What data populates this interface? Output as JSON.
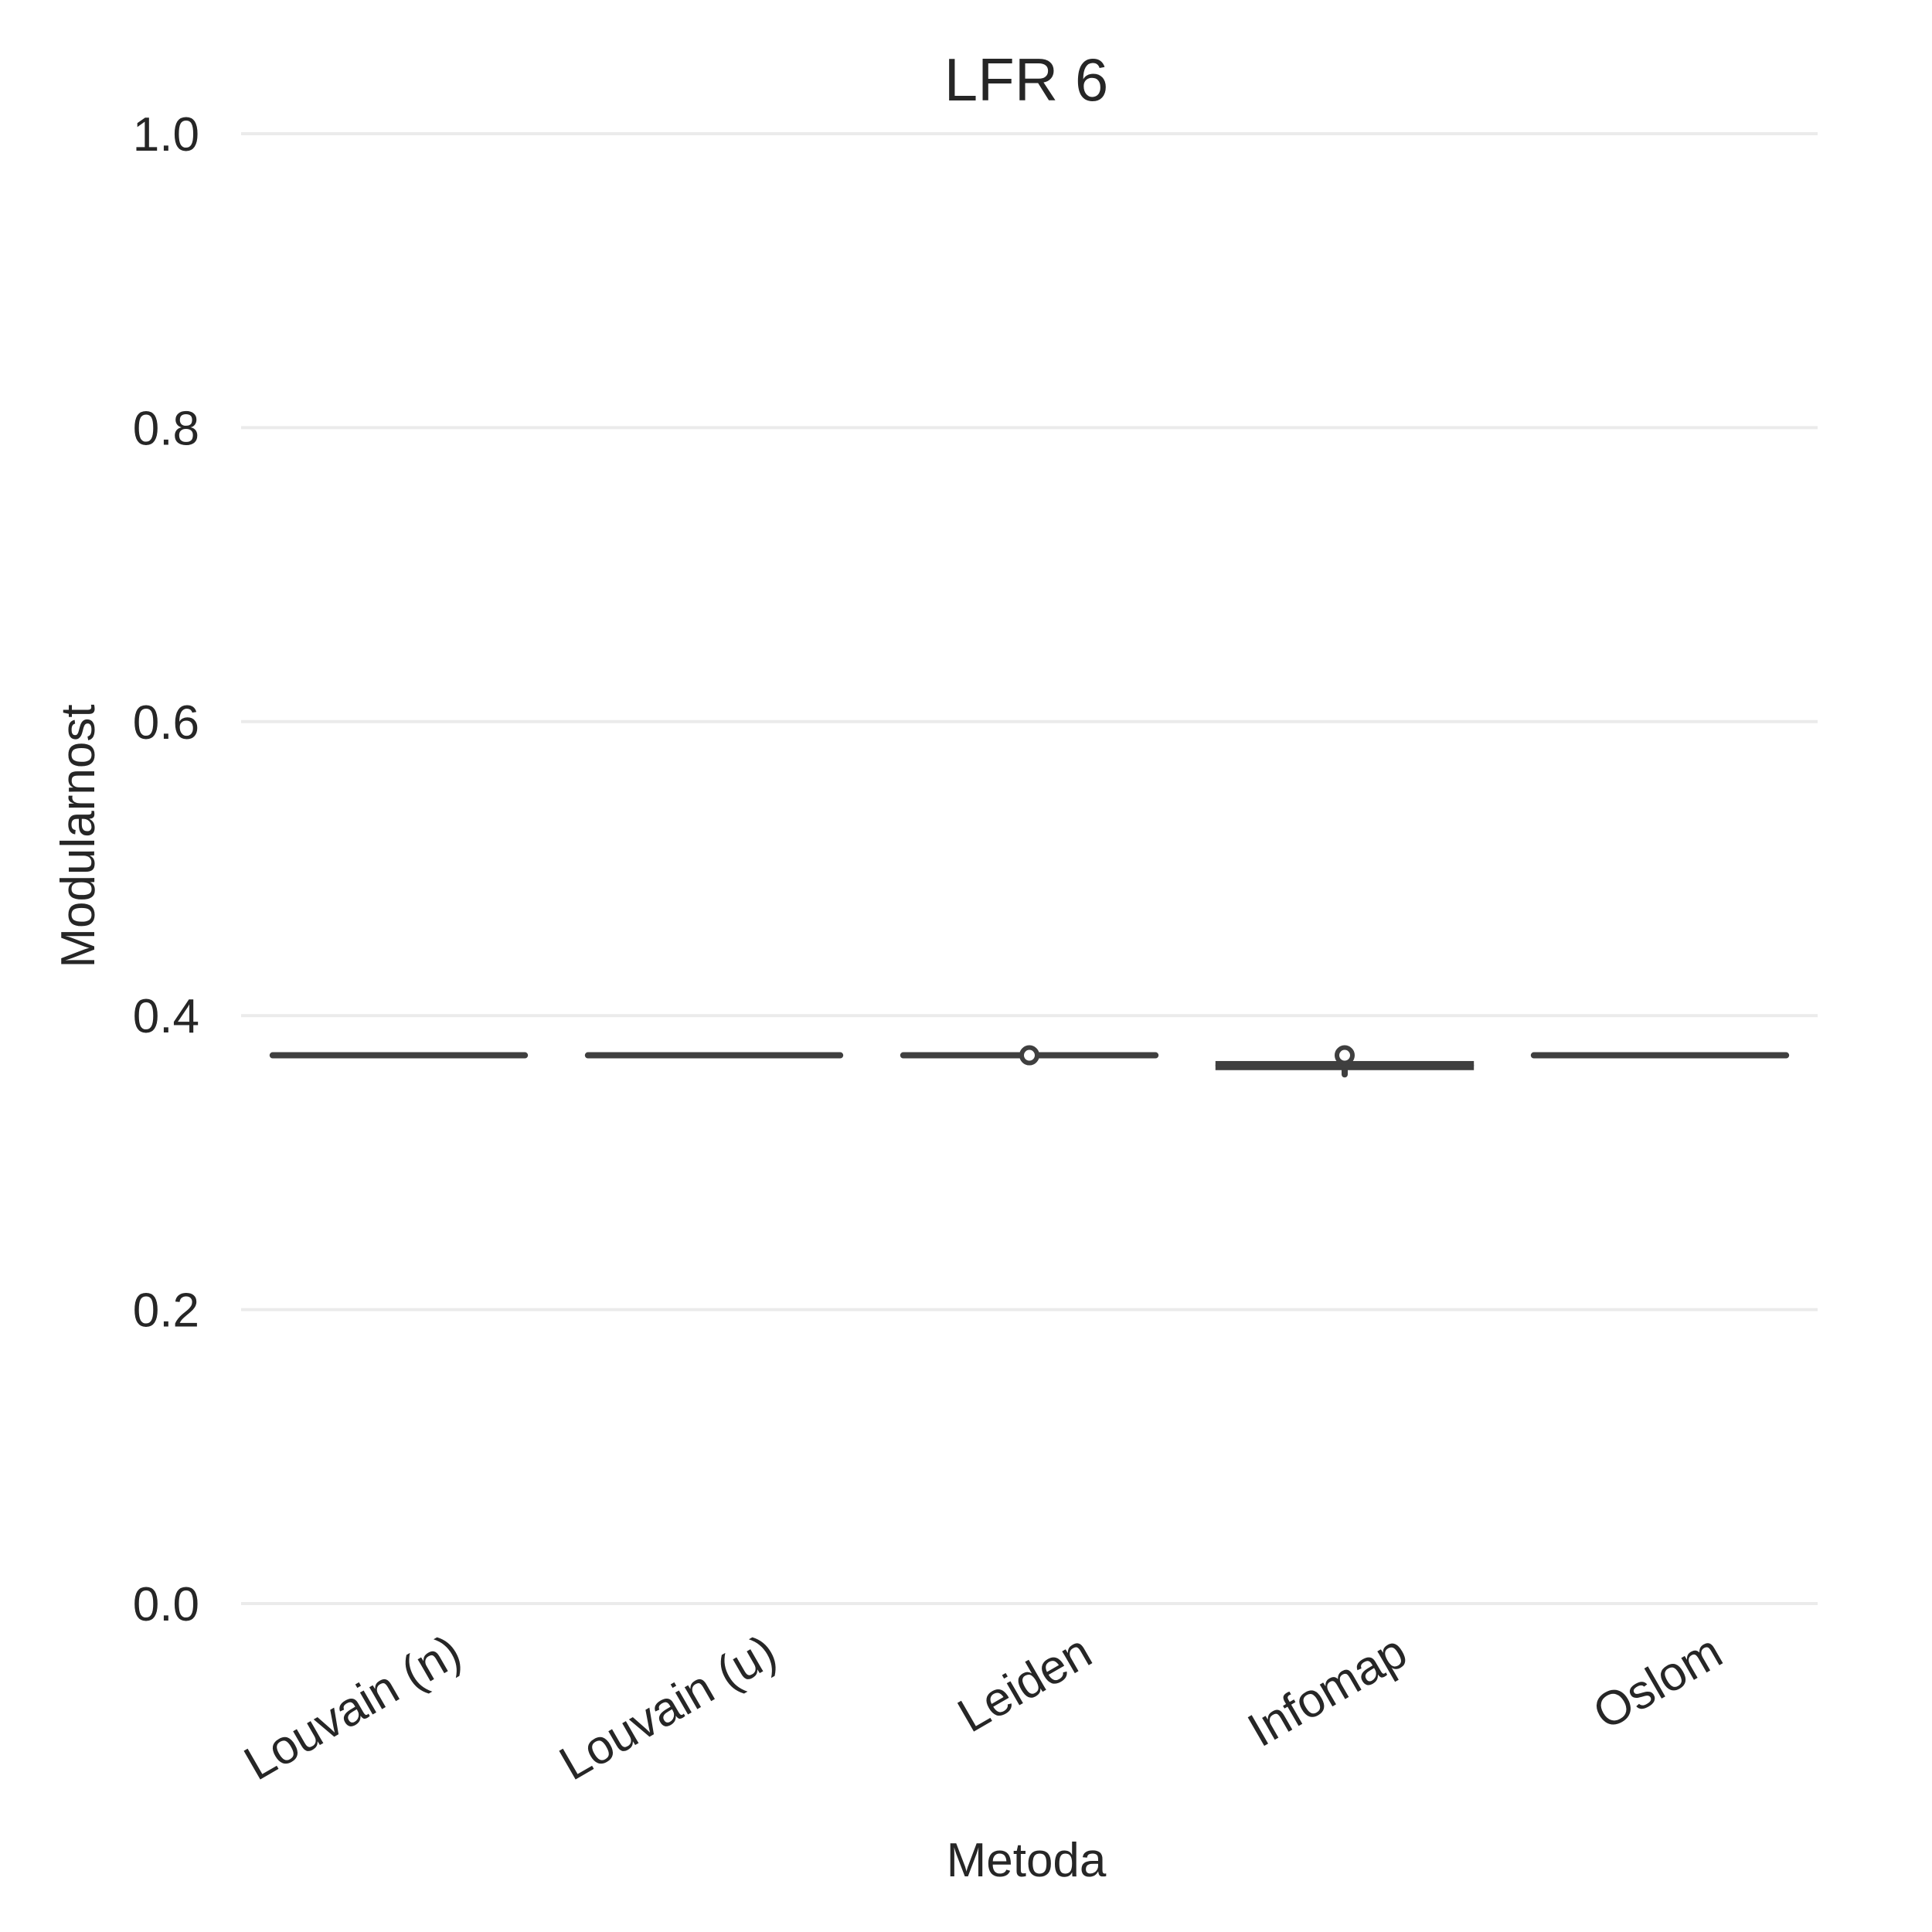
{
  "chart_data": {
    "type": "box",
    "title": "LFR 6",
    "xlabel": "Metoda",
    "ylabel": "Modularnost",
    "ylim": [
      0.0,
      1.0
    ],
    "yticks": [
      "0.0",
      "0.2",
      "0.4",
      "0.6",
      "0.8",
      "1.0"
    ],
    "grid": true,
    "colors": {
      "box": "#3f3f3f",
      "grid": "#ebebeb",
      "text": "#262626"
    },
    "categories": [
      "Louvain (n)",
      "Louvain (u)",
      "Leiden",
      "Infomap",
      "Oslom"
    ],
    "boxes": [
      {
        "category": "Louvain (n)",
        "q1": 0.373,
        "median": 0.373,
        "q3": 0.373,
        "whisker_low": 0.373,
        "whisker_high": 0.373,
        "fliers": []
      },
      {
        "category": "Louvain (u)",
        "q1": 0.373,
        "median": 0.373,
        "q3": 0.373,
        "whisker_low": 0.373,
        "whisker_high": 0.373,
        "fliers": []
      },
      {
        "category": "Leiden",
        "q1": 0.373,
        "median": 0.373,
        "q3": 0.373,
        "whisker_low": 0.373,
        "whisker_high": 0.373,
        "fliers": [
          0.373
        ]
      },
      {
        "category": "Infomap",
        "q1": 0.365,
        "median": 0.366,
        "q3": 0.367,
        "whisker_low": 0.36,
        "whisker_high": 0.367,
        "fliers": [
          0.373
        ]
      },
      {
        "category": "Oslom",
        "q1": 0.373,
        "median": 0.373,
        "q3": 0.373,
        "whisker_low": 0.373,
        "whisker_high": 0.373,
        "fliers": []
      }
    ]
  }
}
